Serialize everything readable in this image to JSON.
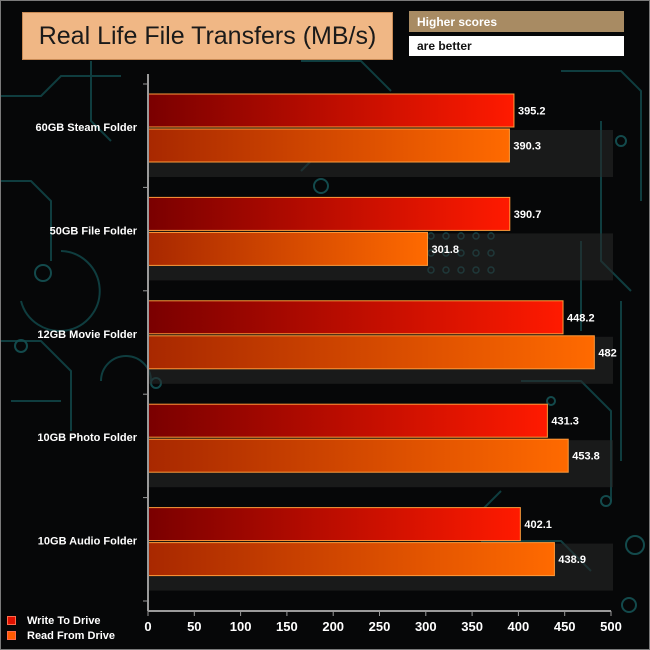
{
  "title": "Real Life File Transfers (MB/s)",
  "notes": {
    "line1": "Higher scores",
    "line2": "are better"
  },
  "colors": {
    "write_dark": "#7a0000",
    "write_light": "#ff1a00",
    "read_dark": "#a82800",
    "read_light": "#ff6a00",
    "bar_border": "#ff9a3a",
    "axis": "#9a9a9a",
    "title_bg": "#f0b785",
    "note_bg": "#a88b63"
  },
  "chart_data": {
    "type": "bar",
    "orientation": "horizontal",
    "title": "Real Life File Transfers (MB/s)",
    "xlabel": "",
    "ylabel": "",
    "xlim": [
      0,
      500
    ],
    "ticks": [
      0,
      50,
      100,
      150,
      200,
      250,
      300,
      350,
      400,
      450,
      500
    ],
    "categories": [
      "60GB Steam Folder",
      "50GB File Folder",
      "12GB Movie Folder",
      "10GB Photo Folder",
      "10GB Audio Folder"
    ],
    "series": [
      {
        "name": "Write To  Drive",
        "values": [
          395.2,
          390.7,
          448.2,
          431.3,
          402.1
        ]
      },
      {
        "name": "Read From  Drive",
        "values": [
          390.3,
          301.8,
          482,
          453.8,
          438.9
        ]
      }
    ],
    "legend_position": "bottom-left"
  }
}
